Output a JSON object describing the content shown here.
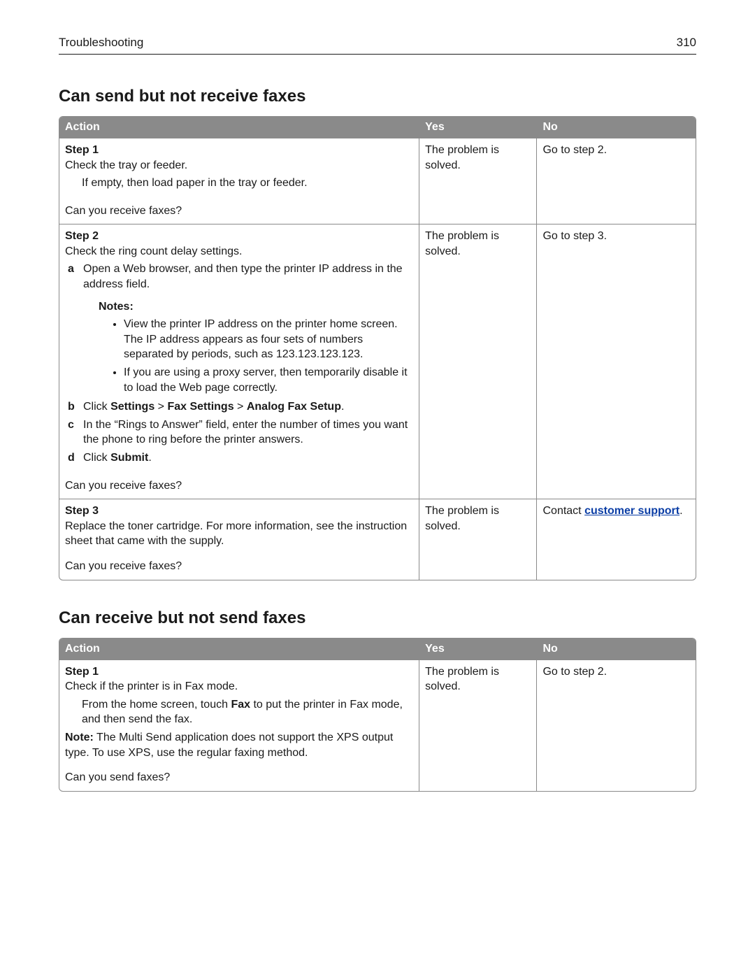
{
  "header": {
    "section": "Troubleshooting",
    "page_number": "310"
  },
  "columns": {
    "action": "Action",
    "yes": "Yes",
    "no": "No"
  },
  "section1": {
    "title": "Can send but not receive faxes",
    "rows": [
      {
        "step_label": "Step 1",
        "yes": "The problem is solved.",
        "no": "Go to step 2.",
        "line1": "Check the tray or feeder.",
        "indent1": "If empty, then load paper in the tray or feeder.",
        "question": "Can you receive faxes?"
      },
      {
        "step_label": "Step 2",
        "yes": "The problem is solved.",
        "no": "Go to step 3.",
        "line1": "Check the ring count delay settings.",
        "a": "Open a Web browser, and then type the printer IP address in the address field.",
        "notes_label": "Notes:",
        "note1": "View the printer IP address on the printer home screen. The IP address appears as four sets of numbers separated by periods, such as 123.123.123.123.",
        "note2": "If you are using a proxy server, then temporarily disable it to load the Web page correctly.",
        "b_pre": "Click ",
        "b_s1": "Settings",
        "b_gt1": " > ",
        "b_s2": "Fax Settings",
        "b_gt2": " > ",
        "b_s3": "Analog Fax Setup",
        "b_post": ".",
        "c": "In the “Rings to Answer” field, enter the number of times you want the phone to ring before the printer answers.",
        "d_pre": "Click ",
        "d_bold": "Submit",
        "d_post": ".",
        "question": "Can you receive faxes?"
      },
      {
        "step_label": "Step 3",
        "yes": "The problem is solved.",
        "no_pre": "Contact ",
        "no_link": "customer support",
        "no_post": ".",
        "line1": "Replace the toner cartridge. For more information, see the instruction sheet that came with the supply.",
        "question": "Can you receive faxes?"
      }
    ]
  },
  "section2": {
    "title": "Can receive but not send faxes",
    "rows": [
      {
        "step_label": "Step 1",
        "yes": "The problem is solved.",
        "no": "Go to step 2.",
        "line1": "Check if the printer is in Fax mode.",
        "indent_pre": "From the home screen, touch ",
        "indent_bold": "Fax",
        "indent_post": " to put the printer in Fax mode, and then send the fax.",
        "note_bold": "Note:",
        "note_text": " The Multi Send application does not support the XPS output type. To use XPS, use the regular faxing method.",
        "question": "Can you send faxes?"
      }
    ]
  }
}
